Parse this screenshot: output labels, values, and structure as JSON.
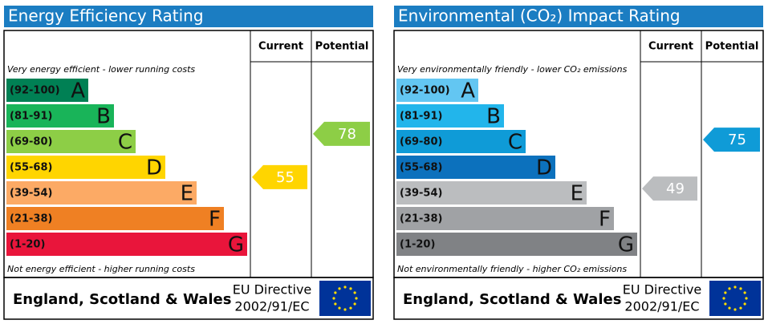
{
  "chart_data": [
    {
      "type": "epc",
      "title": "Energy Efficiency Rating",
      "columns": [
        "Current",
        "Potential"
      ],
      "top_note": "Very energy efficient - lower running costs",
      "bottom_note": "Not energy efficient - higher running costs",
      "bands": [
        {
          "label": "(92-100)",
          "letter": "A",
          "color": "#008054"
        },
        {
          "label": "(81-91)",
          "letter": "B",
          "color": "#19b459"
        },
        {
          "label": "(69-80)",
          "letter": "C",
          "color": "#8dce46"
        },
        {
          "label": "(55-68)",
          "letter": "D",
          "color": "#ffd500"
        },
        {
          "label": "(39-54)",
          "letter": "E",
          "color": "#fcaa65"
        },
        {
          "label": "(21-38)",
          "letter": "F",
          "color": "#ef8023"
        },
        {
          "label": "(1-20)",
          "letter": "G",
          "color": "#e9153b"
        }
      ],
      "current": 55,
      "potential": 78,
      "footer": {
        "region": "England, Scotland & Wales",
        "directive": [
          "EU Directive",
          "2002/91/EC"
        ]
      }
    },
    {
      "type": "epc",
      "title": "Environmental (CO₂) Impact Rating",
      "columns": [
        "Current",
        "Potential"
      ],
      "top_note": "Very environmentally friendly - lower CO₂ emissions",
      "bottom_note": "Not environmentally friendly - higher CO₂ emissions",
      "bands": [
        {
          "label": "(92-100)",
          "letter": "A",
          "color": "#63c6f2"
        },
        {
          "label": "(81-91)",
          "letter": "B",
          "color": "#22b5eb"
        },
        {
          "label": "(69-80)",
          "letter": "C",
          "color": "#0f9bd7"
        },
        {
          "label": "(55-68)",
          "letter": "D",
          "color": "#0c71bd"
        },
        {
          "label": "(39-54)",
          "letter": "E",
          "color": "#bbbdbf"
        },
        {
          "label": "(21-38)",
          "letter": "F",
          "color": "#a0a2a5"
        },
        {
          "label": "(1-20)",
          "letter": "G",
          "color": "#808285"
        }
      ],
      "current": 49,
      "potential": 75,
      "footer": {
        "region": "England, Scotland & Wales",
        "directive": [
          "EU Directive",
          "2002/91/EC"
        ]
      }
    }
  ]
}
